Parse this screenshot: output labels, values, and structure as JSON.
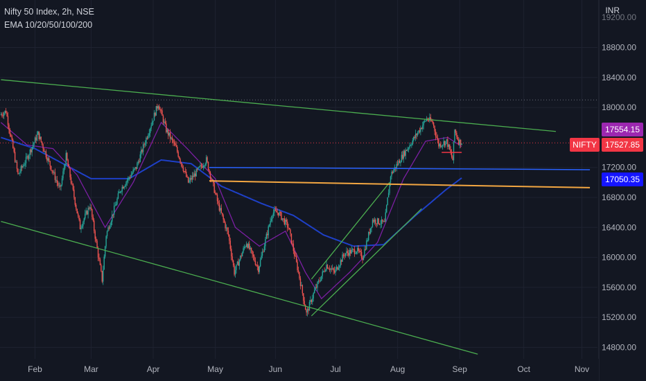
{
  "header": {
    "symbol_line": "Nifty 50 Index, 2h, NSE",
    "indicator_line": "EMA 10/20/50/100/200",
    "currency": "INR"
  },
  "colors": {
    "background": "#131722",
    "grid": "#1e2230",
    "up_candle": "#26a69a",
    "down_candle": "#ef5350",
    "channel_line": "#4caf50",
    "ema_fast": "#7b1fa2",
    "ema_slow": "#1e40c8",
    "support_blue": "#2962ff",
    "support_orange": "#f4a742",
    "red_line": "#f23645",
    "dotted_last": "#f23645"
  },
  "chart_data": {
    "type": "candlestick",
    "title": "Nifty 50 Index, 2h, NSE",
    "indicator": "EMA 10/20/50/100/200",
    "x_ticks": [
      "Feb",
      "Mar",
      "Apr",
      "May",
      "Jun",
      "Jul",
      "Aug",
      "Sep",
      "Oct",
      "Nov"
    ],
    "y_ticks": [
      14800,
      15200,
      15600,
      16000,
      16400,
      16800,
      17200,
      18000,
      18400,
      18800
    ],
    "y_range": [
      14700,
      19200
    ],
    "y_unit": "INR",
    "grid": true,
    "price_anchors": [
      [
        "2022-01-15",
        17900
      ],
      [
        "2022-01-18",
        17950
      ],
      [
        "2022-01-24",
        17100
      ],
      [
        "2022-01-28",
        17300
      ],
      [
        "2022-02-03",
        17650
      ],
      [
        "2022-02-08",
        17300
      ],
      [
        "2022-02-14",
        16900
      ],
      [
        "2022-02-17",
        17350
      ],
      [
        "2022-02-24",
        16400
      ],
      [
        "2022-03-01",
        16700
      ],
      [
        "2022-03-07",
        15700
      ],
      [
        "2022-03-09",
        16300
      ],
      [
        "2022-03-16",
        16900
      ],
      [
        "2022-03-24",
        17200
      ],
      [
        "2022-04-04",
        18050
      ],
      [
        "2022-04-08",
        17700
      ],
      [
        "2022-04-13",
        17450
      ],
      [
        "2022-04-19",
        17000
      ],
      [
        "2022-04-25",
        17200
      ],
      [
        "2022-04-28",
        17300
      ],
      [
        "2022-05-04",
        16700
      ],
      [
        "2022-05-09",
        16300
      ],
      [
        "2022-05-12",
        15800
      ],
      [
        "2022-05-18",
        16200
      ],
      [
        "2022-05-24",
        15850
      ],
      [
        "2022-05-31",
        16600
      ],
      [
        "2022-06-03",
        16600
      ],
      [
        "2022-06-08",
        16400
      ],
      [
        "2022-06-13",
        15800
      ],
      [
        "2022-06-17",
        15250
      ],
      [
        "2022-06-21",
        15550
      ],
      [
        "2022-06-27",
        15900
      ],
      [
        "2022-07-01",
        15800
      ],
      [
        "2022-07-06",
        16050
      ],
      [
        "2022-07-12",
        16100
      ],
      [
        "2022-07-15",
        16000
      ],
      [
        "2022-07-20",
        16500
      ],
      [
        "2022-07-26",
        16450
      ],
      [
        "2022-07-29",
        17100
      ],
      [
        "2022-08-05",
        17400
      ],
      [
        "2022-08-10",
        17600
      ],
      [
        "2022-08-16",
        17850
      ],
      [
        "2022-08-19",
        17800
      ],
      [
        "2022-08-22",
        17500
      ],
      [
        "2022-08-26",
        17550
      ],
      [
        "2022-08-29",
        17300
      ],
      [
        "2022-08-30",
        17700
      ],
      [
        "2022-09-01",
        17550
      ],
      [
        "2022-09-02",
        17540
      ]
    ],
    "ema_fast": [
      [
        "2022-01-15",
        17800
      ],
      [
        "2022-01-28",
        17500
      ],
      [
        "2022-02-10",
        17450
      ],
      [
        "2022-02-22",
        17100
      ],
      [
        "2022-03-08",
        16400
      ],
      [
        "2022-03-22",
        17000
      ],
      [
        "2022-04-05",
        17800
      ],
      [
        "2022-04-18",
        17450
      ],
      [
        "2022-05-02",
        17050
      ],
      [
        "2022-05-12",
        16400
      ],
      [
        "2022-05-24",
        16150
      ],
      [
        "2022-06-06",
        16350
      ],
      [
        "2022-06-16",
        15800
      ],
      [
        "2022-06-24",
        15450
      ],
      [
        "2022-07-08",
        15800
      ],
      [
        "2022-07-22",
        16200
      ],
      [
        "2022-08-04",
        17050
      ],
      [
        "2022-08-15",
        17550
      ],
      [
        "2022-08-26",
        17600
      ],
      [
        "2022-09-02",
        17480
      ]
    ],
    "ema_slow": [
      [
        "2022-01-15",
        17600
      ],
      [
        "2022-02-01",
        17450
      ],
      [
        "2022-02-15",
        17250
      ],
      [
        "2022-03-01",
        17050
      ],
      [
        "2022-03-20",
        17050
      ],
      [
        "2022-04-05",
        17300
      ],
      [
        "2022-04-20",
        17250
      ],
      [
        "2022-05-05",
        16950
      ],
      [
        "2022-05-25",
        16720
      ],
      [
        "2022-06-10",
        16560
      ],
      [
        "2022-06-25",
        16300
      ],
      [
        "2022-07-10",
        16150
      ],
      [
        "2022-07-25",
        16170
      ],
      [
        "2022-08-10",
        16560
      ],
      [
        "2022-08-25",
        16900
      ],
      [
        "2022-09-02",
        17060
      ]
    ],
    "drawn_lines": [
      {
        "name": "descending-channel-top",
        "from": [
          "2022-01-15",
          18370
        ],
        "to": [
          "2022-10-19",
          17680
        ]
      },
      {
        "name": "descending-channel-bottom",
        "from": [
          "2022-01-15",
          16480
        ],
        "to": [
          "2022-09-10",
          14710
        ]
      },
      {
        "name": "rising-channel-upper",
        "from": [
          "2022-06-19",
          15710
        ],
        "to": [
          "2022-07-28",
          17000
        ]
      },
      {
        "name": "rising-channel-lower",
        "from": [
          "2022-06-19",
          15220
        ],
        "to": [
          "2022-08-13",
          16650
        ]
      },
      {
        "name": "support-blue",
        "from": [
          "2022-04-29",
          17200
        ],
        "to": [
          "2022-11-05",
          17170
        ]
      },
      {
        "name": "support-orange",
        "from": [
          "2022-04-29",
          17020
        ],
        "to": [
          "2022-11-05",
          16930
        ]
      },
      {
        "name": "red-short",
        "from": [
          "2022-08-23",
          17400
        ],
        "to": [
          "2022-09-02",
          17400
        ]
      }
    ],
    "dotted_resistance": 18100,
    "dotted_last_price": 17527.85,
    "price_tags": [
      {
        "label": "",
        "value": "17554.15",
        "level": 17554.15,
        "color": "#9c27b0"
      },
      {
        "label": "NIFTY",
        "value": "17527.85",
        "level": 17527.85,
        "color": "#f23645"
      },
      {
        "label": "",
        "value": "17050.35",
        "level": 17050.35,
        "color": "#1515ff"
      }
    ],
    "top_cut_tick": "19200.00"
  }
}
